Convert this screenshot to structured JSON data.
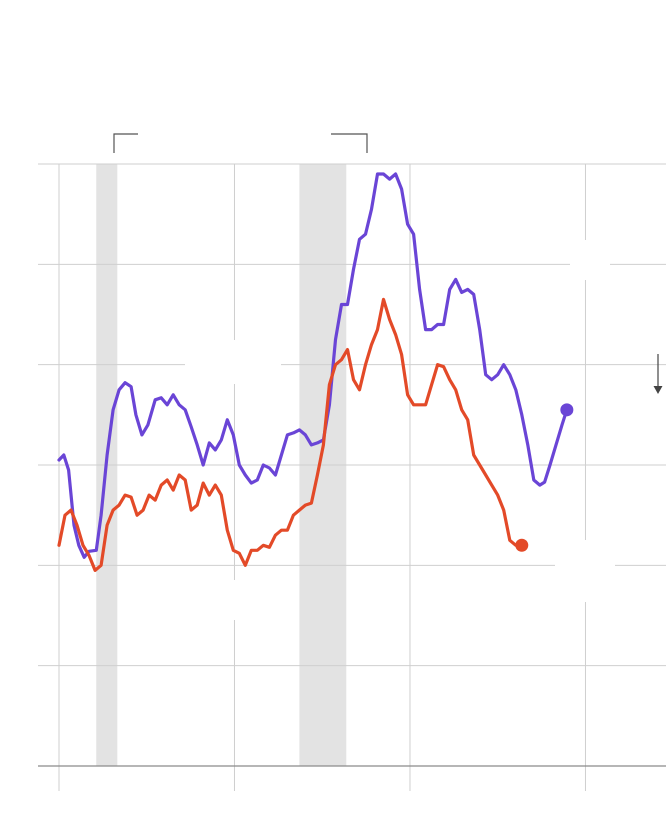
{
  "chart_data": {
    "type": "line",
    "title": "",
    "xlabel": "",
    "ylabel": "",
    "xlim": [
      0,
      100
    ],
    "ylim": [
      0,
      6
    ],
    "grid": true,
    "legend": "none",
    "recessions": [
      [
        6.2,
        9.7
      ],
      [
        40.0,
        47.8
      ]
    ],
    "series": [
      {
        "color": "#6a45d6",
        "end_marker": true,
        "values": [
          [
            0.0,
            3.05
          ],
          [
            0.8,
            3.1
          ],
          [
            1.6,
            2.95
          ],
          [
            2.5,
            2.4
          ],
          [
            3.3,
            2.2
          ],
          [
            4.2,
            2.08
          ],
          [
            5.0,
            2.14
          ],
          [
            6.2,
            2.15
          ],
          [
            7.0,
            2.5
          ],
          [
            8.0,
            3.1
          ],
          [
            9.0,
            3.55
          ],
          [
            10.0,
            3.75
          ],
          [
            11.0,
            3.82
          ],
          [
            12.0,
            3.78
          ],
          [
            12.8,
            3.5
          ],
          [
            13.8,
            3.3
          ],
          [
            14.8,
            3.4
          ],
          [
            16.0,
            3.65
          ],
          [
            17.0,
            3.67
          ],
          [
            18.0,
            3.6
          ],
          [
            19.0,
            3.7
          ],
          [
            20.0,
            3.6
          ],
          [
            21.0,
            3.55
          ],
          [
            22.0,
            3.38
          ],
          [
            23.0,
            3.2
          ],
          [
            24.0,
            3.0
          ],
          [
            25.0,
            3.22
          ],
          [
            26.0,
            3.15
          ],
          [
            27.0,
            3.25
          ],
          [
            28.0,
            3.45
          ],
          [
            29.0,
            3.3
          ],
          [
            30.0,
            3.0
          ],
          [
            31.0,
            2.9
          ],
          [
            32.0,
            2.82
          ],
          [
            33.0,
            2.85
          ],
          [
            34.0,
            3.0
          ],
          [
            35.0,
            2.97
          ],
          [
            36.0,
            2.9
          ],
          [
            37.0,
            3.1
          ],
          [
            38.0,
            3.3
          ],
          [
            39.0,
            3.32
          ],
          [
            40.0,
            3.35
          ],
          [
            41.0,
            3.3
          ],
          [
            42.0,
            3.2
          ],
          [
            43.0,
            3.22
          ],
          [
            44.0,
            3.25
          ],
          [
            45.0,
            3.6
          ],
          [
            46.0,
            4.25
          ],
          [
            47.0,
            4.6
          ],
          [
            48.0,
            4.6
          ],
          [
            49.0,
            4.95
          ],
          [
            50.0,
            5.25
          ],
          [
            51.0,
            5.3
          ],
          [
            52.0,
            5.55
          ],
          [
            53.0,
            5.9
          ],
          [
            54.0,
            5.9
          ],
          [
            55.0,
            5.85
          ],
          [
            56.0,
            5.9
          ],
          [
            57.0,
            5.75
          ],
          [
            58.0,
            5.4
          ],
          [
            59.0,
            5.3
          ],
          [
            60.0,
            4.75
          ],
          [
            61.0,
            4.35
          ],
          [
            62.0,
            4.35
          ],
          [
            63.0,
            4.4
          ],
          [
            64.0,
            4.4
          ],
          [
            65.0,
            4.75
          ],
          [
            66.0,
            4.85
          ],
          [
            67.0,
            4.72
          ],
          [
            68.0,
            4.75
          ],
          [
            69.0,
            4.7
          ],
          [
            70.0,
            4.35
          ],
          [
            71.0,
            3.9
          ],
          [
            72.0,
            3.85
          ],
          [
            73.0,
            3.9
          ],
          [
            74.0,
            4.0
          ],
          [
            75.0,
            3.9
          ],
          [
            76.0,
            3.75
          ],
          [
            77.0,
            3.5
          ],
          [
            78.0,
            3.2
          ],
          [
            79.0,
            2.85
          ],
          [
            80.0,
            2.8
          ],
          [
            80.8,
            2.83
          ],
          [
            81.7,
            3.0
          ],
          [
            82.7,
            3.2
          ],
          [
            83.7,
            3.4
          ],
          [
            84.5,
            3.55
          ]
        ]
      },
      {
        "color": "#e34a28",
        "end_marker": true,
        "values": [
          [
            0.0,
            2.2
          ],
          [
            1.0,
            2.5
          ],
          [
            2.0,
            2.55
          ],
          [
            3.0,
            2.4
          ],
          [
            4.0,
            2.2
          ],
          [
            5.0,
            2.1
          ],
          [
            6.0,
            1.95
          ],
          [
            7.0,
            2.0
          ],
          [
            8.0,
            2.4
          ],
          [
            9.0,
            2.55
          ],
          [
            10.0,
            2.6
          ],
          [
            11.0,
            2.7
          ],
          [
            12.0,
            2.68
          ],
          [
            13.0,
            2.5
          ],
          [
            14.0,
            2.55
          ],
          [
            15.0,
            2.7
          ],
          [
            16.0,
            2.65
          ],
          [
            17.0,
            2.8
          ],
          [
            18.0,
            2.85
          ],
          [
            19.0,
            2.75
          ],
          [
            20.0,
            2.9
          ],
          [
            21.0,
            2.85
          ],
          [
            22.0,
            2.55
          ],
          [
            23.0,
            2.6
          ],
          [
            24.0,
            2.82
          ],
          [
            25.0,
            2.7
          ],
          [
            26.0,
            2.8
          ],
          [
            27.0,
            2.7
          ],
          [
            28.0,
            2.35
          ],
          [
            29.0,
            2.15
          ],
          [
            30.0,
            2.12
          ],
          [
            31.0,
            2.0
          ],
          [
            32.0,
            2.15
          ],
          [
            33.0,
            2.15
          ],
          [
            34.0,
            2.2
          ],
          [
            35.0,
            2.18
          ],
          [
            36.0,
            2.3
          ],
          [
            37.0,
            2.35
          ],
          [
            38.0,
            2.35
          ],
          [
            39.0,
            2.5
          ],
          [
            40.0,
            2.55
          ],
          [
            41.0,
            2.6
          ],
          [
            42.0,
            2.62
          ],
          [
            43.0,
            2.9
          ],
          [
            44.0,
            3.2
          ],
          [
            45.0,
            3.8
          ],
          [
            46.0,
            4.0
          ],
          [
            47.0,
            4.05
          ],
          [
            48.0,
            4.15
          ],
          [
            49.0,
            3.85
          ],
          [
            50.0,
            3.75
          ],
          [
            51.0,
            4.0
          ],
          [
            52.0,
            4.2
          ],
          [
            53.0,
            4.35
          ],
          [
            54.0,
            4.65
          ],
          [
            55.0,
            4.45
          ],
          [
            56.0,
            4.3
          ],
          [
            57.0,
            4.1
          ],
          [
            58.0,
            3.7
          ],
          [
            59.0,
            3.6
          ],
          [
            60.0,
            3.6
          ],
          [
            61.0,
            3.6
          ],
          [
            62.0,
            3.8
          ],
          [
            63.0,
            4.0
          ],
          [
            64.0,
            3.98
          ],
          [
            65.0,
            3.85
          ],
          [
            66.0,
            3.75
          ],
          [
            67.0,
            3.55
          ],
          [
            68.0,
            3.45
          ],
          [
            69.0,
            3.1
          ],
          [
            70.0,
            3.0
          ],
          [
            71.0,
            2.9
          ],
          [
            72.0,
            2.8
          ],
          [
            73.0,
            2.7
          ],
          [
            74.0,
            2.55
          ],
          [
            75.0,
            2.25
          ],
          [
            76.0,
            2.2
          ],
          [
            77.0,
            2.2
          ]
        ]
      }
    ]
  }
}
